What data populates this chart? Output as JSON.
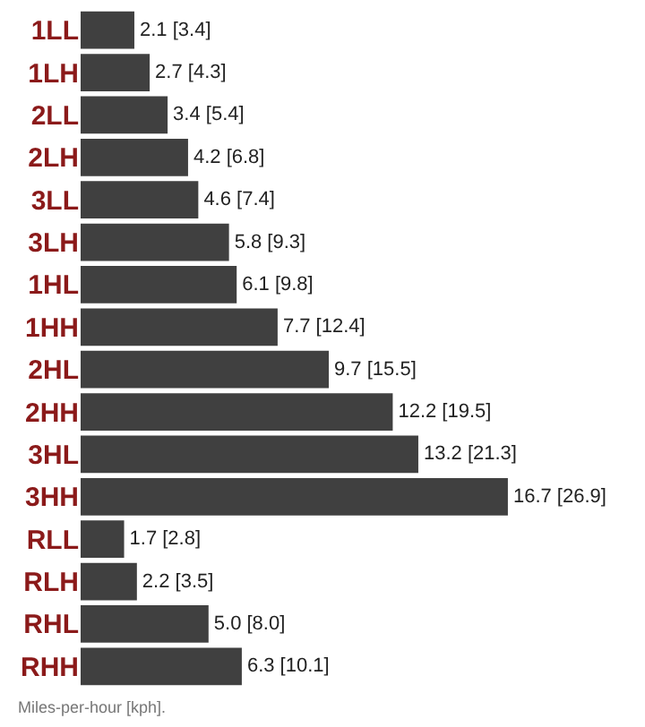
{
  "chart_data": {
    "type": "bar",
    "orientation": "horizontal",
    "categories": [
      "1LL",
      "1LH",
      "2LL",
      "2LH",
      "3LL",
      "3LH",
      "1HL",
      "1HH",
      "2HL",
      "2HH",
      "3HL",
      "3HH",
      "RLL",
      "RLH",
      "RHL",
      "RHH"
    ],
    "values": [
      2.1,
      2.7,
      3.4,
      4.2,
      4.6,
      5.8,
      6.1,
      7.7,
      9.7,
      12.2,
      13.2,
      16.7,
      1.7,
      2.2,
      5.0,
      6.3
    ],
    "value_labels": [
      "2.1 [3.4]",
      "2.7 [4.3]",
      "3.4 [5.4]",
      "4.2 [6.8]",
      "4.6 [7.4]",
      "5.8 [9.3]",
      "6.1 [9.8]",
      "7.7 [12.4]",
      "9.7 [15.5]",
      "12.2 [19.5]",
      "13.2 [21.3]",
      "16.7 [26.9]",
      "1.7 [2.8]",
      "2.2 [3.5]",
      "5.0 [8.0]",
      "6.3 [10.1]"
    ],
    "color": "#404040",
    "legend": false,
    "annotations": [
      "Miles-per-hour [kph]."
    ]
  }
}
